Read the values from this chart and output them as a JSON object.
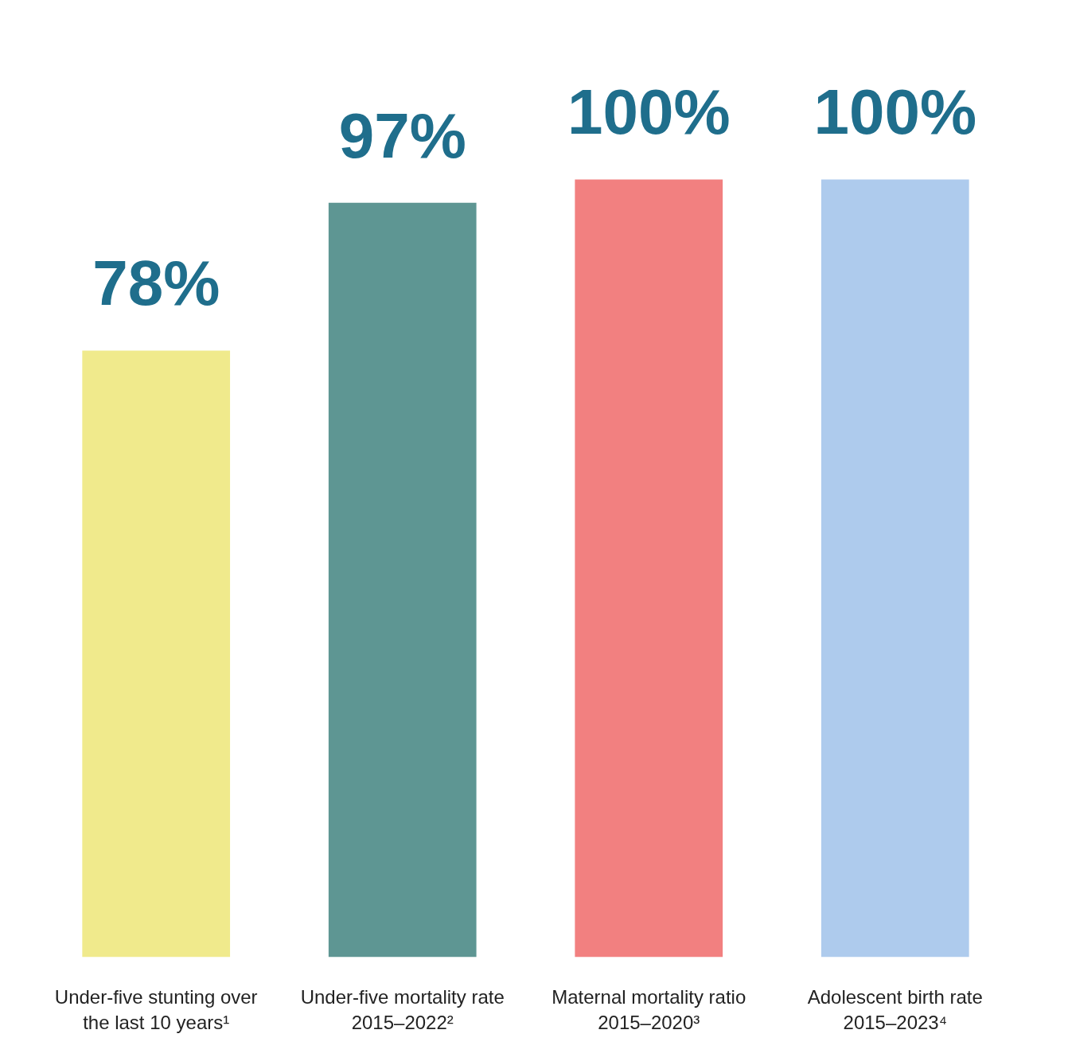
{
  "chart_data": {
    "type": "bar",
    "categories": [
      "Under-five stunting over the last 10 years¹",
      "Under-five mortality rate 2015–2022²",
      "Maternal mortality ratio 2015–2020³",
      "Adolescent birth rate 2015–2023⁴"
    ],
    "values": [
      78,
      97,
      100,
      100
    ],
    "colors": [
      "#f0ea8c",
      "#5e9693",
      "#f28080",
      "#aecbed"
    ],
    "value_labels": [
      "78%",
      "97%",
      "100%",
      "100%"
    ]
  }
}
